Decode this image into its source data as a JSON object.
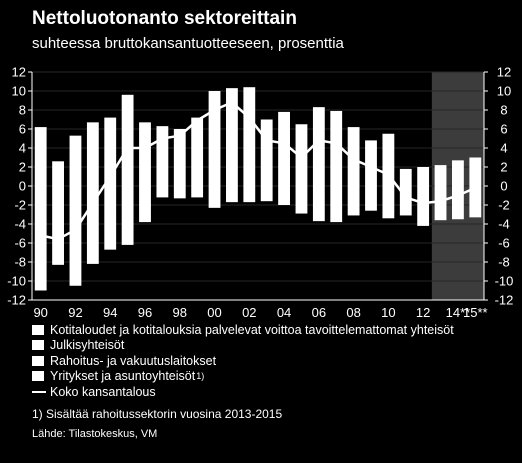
{
  "title": "Nettoluotonanto sektoreittain",
  "subtitle": "suhteessa bruttokansantuotteeseen, prosenttia",
  "legend": {
    "items": [
      "Kotitaloudet ja kotitalouksia palvelevat voittoa tavoittelemattomat yhteisöt",
      "Julkisyhteisöt",
      "Rahoitus- ja vakuutuslaitokset",
      "Yritykset ja asuntoyhteisöt"
    ],
    "footnote_marker": "1)",
    "line_label": "Koko kansantalous"
  },
  "footnote": "1) Sisältää rahoitussektorin vuosina 2013-2015",
  "source": "Lähde: Tilastokeskus, VM",
  "chart_data": {
    "type": "bar",
    "stacked": true,
    "categories": [
      "1990",
      "1991",
      "1992",
      "1993",
      "1994",
      "1995",
      "1996",
      "1997",
      "1998",
      "1999",
      "2000",
      "2001",
      "2002",
      "2003",
      "2004",
      "2005",
      "2006",
      "2007",
      "2008",
      "2009",
      "2010",
      "2011",
      "2012",
      "2013",
      "2014",
      "2015"
    ],
    "x_tick_labels": [
      "90",
      "92",
      "94",
      "96",
      "98",
      "00",
      "02",
      "04",
      "06",
      "08",
      "10",
      "12",
      "14**",
      "15**"
    ],
    "bar_positive": [
      6.2,
      2.6,
      5.3,
      6.7,
      7.2,
      9.6,
      6.7,
      6.3,
      6.0,
      7.2,
      10.0,
      10.3,
      10.4,
      7.0,
      7.8,
      6.5,
      8.3,
      7.9,
      6.2,
      4.8,
      5.5,
      1.8,
      2.0,
      2.2,
      2.7,
      3.0
    ],
    "bar_negative": [
      -11.0,
      -8.3,
      -10.5,
      -8.2,
      -6.7,
      -6.2,
      -3.8,
      -1.2,
      -1.3,
      -1.2,
      -2.3,
      -1.7,
      -1.7,
      -1.6,
      -2.0,
      -2.9,
      -3.7,
      -3.8,
      -3.1,
      -2.6,
      -3.4,
      -3.1,
      -4.2,
      -3.6,
      -3.5,
      -3.3
    ],
    "series": [
      {
        "name": "Koko kansantalous",
        "type": "line",
        "values": [
          -5.2,
          -5.6,
          -4.6,
          -1.8,
          1.0,
          4.0,
          4.0,
          5.0,
          5.3,
          6.9,
          8.0,
          8.8,
          7.2,
          4.8,
          4.5,
          3.0,
          4.8,
          4.5,
          2.8,
          2.0,
          1.2,
          -1.2,
          -1.8,
          -1.6,
          -1.0,
          -0.2
        ]
      }
    ],
    "yticks": [
      -12,
      -10,
      -8,
      -6,
      -4,
      -2,
      0,
      2,
      4,
      6,
      8,
      10,
      12
    ],
    "ylim": [
      -12,
      12
    ],
    "forecast_years": [
      "2013",
      "2014",
      "2015"
    ],
    "colors": {
      "background": "#000000",
      "bars": "#ffffff",
      "line": "#ffffff",
      "forecast_shade": "#3c3c3c",
      "grid": "#262626"
    }
  }
}
